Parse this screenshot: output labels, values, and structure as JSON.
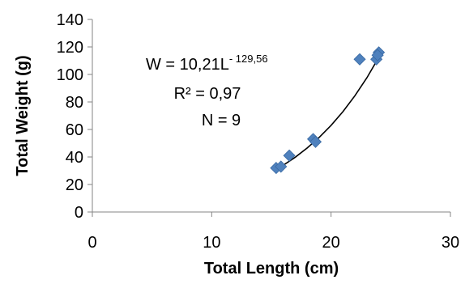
{
  "chart_data": {
    "type": "scatter",
    "xlabel": "Total Length (cm)",
    "ylabel": "Total Weight (g)",
    "xlim": [
      0,
      30
    ],
    "ylim": [
      0,
      140
    ],
    "x_ticks": [
      0,
      10,
      20,
      30
    ],
    "y_ticks": [
      0,
      20,
      40,
      60,
      80,
      100,
      120,
      140
    ],
    "grid": false,
    "legend": "none",
    "marker": "diamond",
    "marker_color": "#4F81BD",
    "trendline_color": "#000000",
    "points": [
      {
        "x": 15.4,
        "y": 32
      },
      {
        "x": 15.8,
        "y": 33
      },
      {
        "x": 16.5,
        "y": 41
      },
      {
        "x": 18.5,
        "y": 53
      },
      {
        "x": 18.7,
        "y": 51
      },
      {
        "x": 22.4,
        "y": 111
      },
      {
        "x": 23.8,
        "y": 111
      },
      {
        "x": 24.0,
        "y": 116
      },
      {
        "x": 23.9,
        "y": 114
      }
    ],
    "trendline": {
      "type": "power",
      "points": [
        {
          "x": 15.4,
          "y": 30.7
        },
        {
          "x": 16.0,
          "y": 34.0
        },
        {
          "x": 17.0,
          "y": 39.8
        },
        {
          "x": 18.0,
          "y": 46.5
        },
        {
          "x": 19.0,
          "y": 54.2
        },
        {
          "x": 20.0,
          "y": 63.0
        },
        {
          "x": 21.0,
          "y": 73.0
        },
        {
          "x": 22.0,
          "y": 84.5
        },
        {
          "x": 23.0,
          "y": 97.6
        },
        {
          "x": 24.0,
          "y": 112.5
        }
      ]
    },
    "annotations": {
      "equation_main": "W = 10,21L",
      "equation_exp": "- 129,56",
      "r2": "R² = 0,97",
      "n": "N = 9"
    }
  }
}
